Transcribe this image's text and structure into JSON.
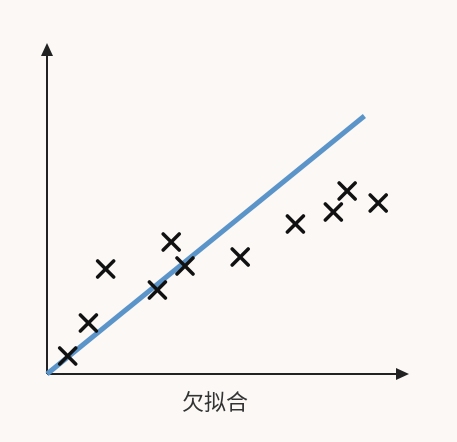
{
  "chart_data": {
    "type": "scatter",
    "title": "",
    "xlabel": "欠拟合",
    "ylabel": "",
    "axes_style": "arrows, no ticks, no grid",
    "grid": false,
    "xlim": [
      0,
      10
    ],
    "ylim": [
      0,
      10
    ],
    "points": [
      {
        "x": 0.6,
        "y": 0.6
      },
      {
        "x": 1.2,
        "y": 1.7
      },
      {
        "x": 1.7,
        "y": 3.5
      },
      {
        "x": 3.2,
        "y": 2.8
      },
      {
        "x": 3.6,
        "y": 4.4
      },
      {
        "x": 4.0,
        "y": 3.6
      },
      {
        "x": 5.6,
        "y": 3.9
      },
      {
        "x": 7.2,
        "y": 5.0
      },
      {
        "x": 8.3,
        "y": 5.4
      },
      {
        "x": 8.7,
        "y": 6.1
      },
      {
        "x": 9.6,
        "y": 5.7
      }
    ],
    "fit_line": {
      "x": [
        0,
        9.2
      ],
      "y": [
        0,
        8.6
      ]
    },
    "colors": {
      "axis": "#222222",
      "marker": "#111111",
      "fit_line": "#5b94c8",
      "background": "#fbf8f6"
    }
  }
}
